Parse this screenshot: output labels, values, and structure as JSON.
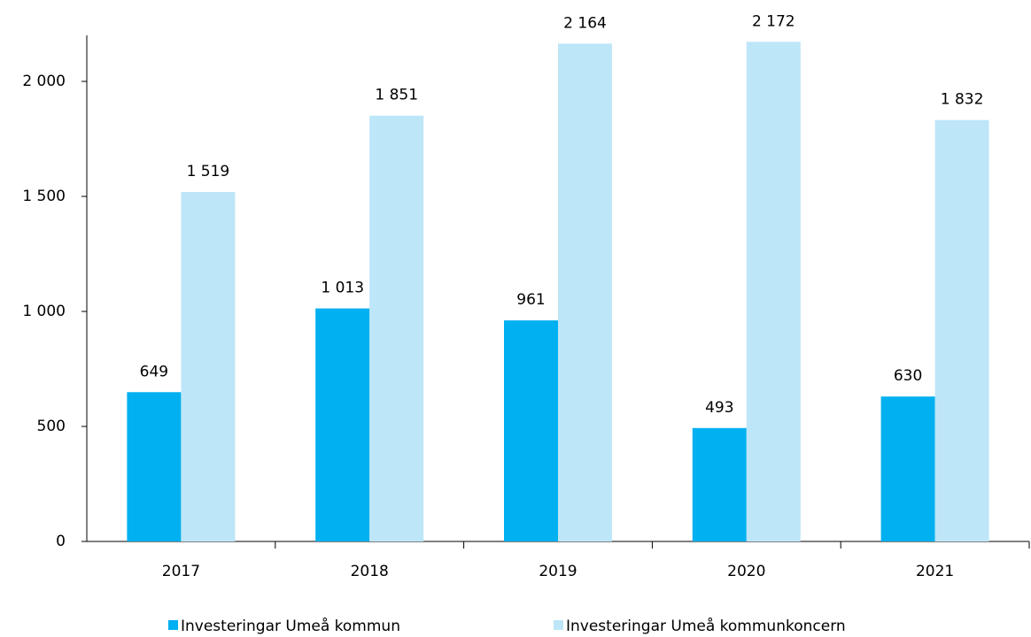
{
  "chart_data": {
    "type": "bar",
    "categories": [
      "2017",
      "2018",
      "2019",
      "2020",
      "2021"
    ],
    "series": [
      {
        "name": "Investeringar Umeå kommun",
        "color": "#00b0f0",
        "values": [
          649,
          1013,
          961,
          493,
          630
        ],
        "value_labels": [
          "649",
          "1 013",
          "961",
          "493",
          "630"
        ]
      },
      {
        "name": "Investeringar Umeå kommunkoncern",
        "color": "#bde6f8",
        "values": [
          1519,
          1851,
          2164,
          2172,
          1832
        ],
        "value_labels": [
          "1 519",
          "1 851",
          "2 164",
          "2 172",
          "1 832"
        ]
      }
    ],
    "ylim": [
      0,
      2200
    ],
    "yticks": [
      0,
      500,
      {
        "value": 1000,
        "label": "1 000"
      },
      {
        "value": 1500,
        "label": "1 500"
      },
      {
        "value": 2000,
        "label": "2 000"
      }
    ],
    "grid": false,
    "legend": "bottom"
  }
}
